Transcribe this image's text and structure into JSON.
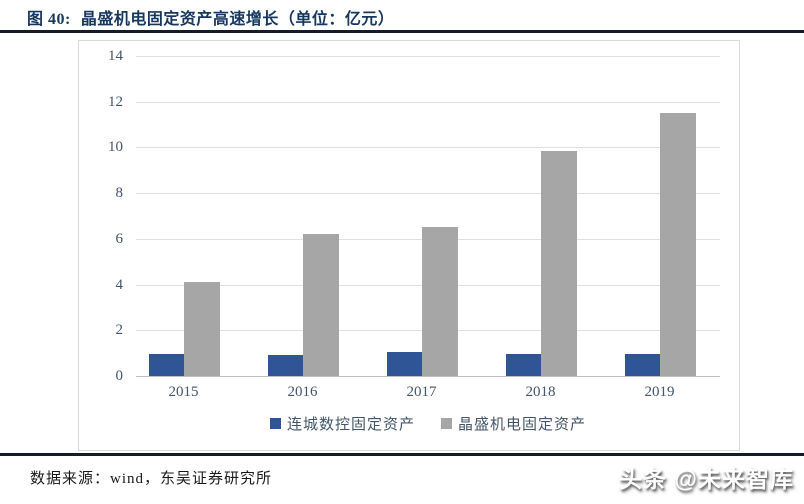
{
  "page": {
    "figure_label": "图 40:",
    "title": "晶盛机电固定资产高速增长（单位：亿元）",
    "source_note": "数据来源：wind，东吴证券研究所",
    "watermark": "头条 @未来智库"
  },
  "colors": {
    "title_navy": "#17375E",
    "rule": "#131c2b",
    "gridline": "#e0e0e0",
    "axis_line": "#bfbfbf",
    "axis_text": "#44546A",
    "chart_border": "#d9d9d9"
  },
  "chart_data": {
    "type": "bar",
    "categories": [
      "2015",
      "2016",
      "2017",
      "2018",
      "2019"
    ],
    "series": [
      {
        "name": "连城数控固定资产",
        "color": "#2F5597",
        "values": [
          0.95,
          0.9,
          1.05,
          0.95,
          0.95
        ]
      },
      {
        "name": "晶盛机电固定资产",
        "color": "#A6A6A6",
        "values": [
          4.1,
          6.2,
          6.5,
          9.85,
          11.5
        ]
      }
    ],
    "title": "晶盛机电固定资产高速增长",
    "unit": "亿元",
    "xlabel": "",
    "ylabel": "",
    "ylim": [
      0,
      14
    ],
    "ytick_step": 2,
    "grid": true,
    "legend_position": "bottom"
  }
}
